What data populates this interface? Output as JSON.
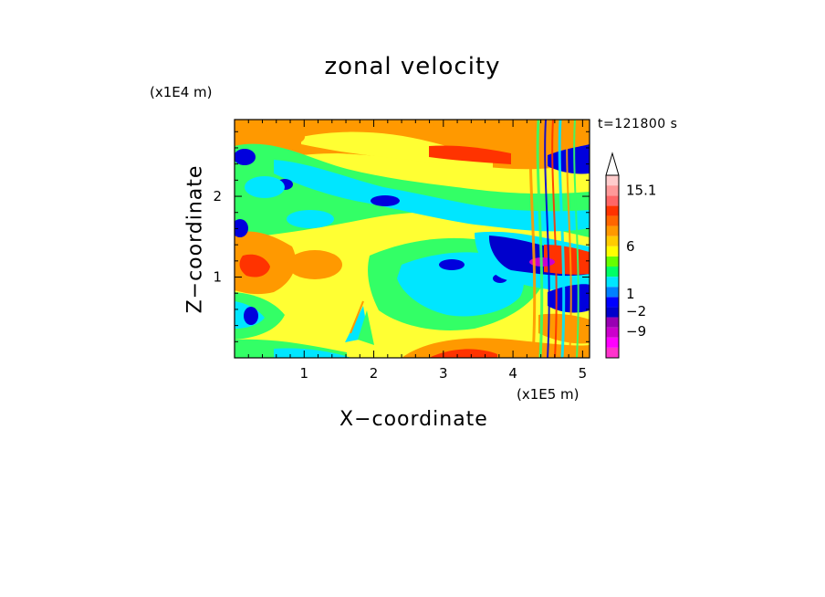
{
  "chart_data": {
    "type": "heatmap",
    "title": "zonal velocity",
    "xlabel": "X−coordinate",
    "ylabel": "Z−coordinate",
    "x_scale_label": "(x1E5 m)",
    "z_scale_label": "(x1E4 m)",
    "time_label": "t=121800 s",
    "xlim": [
      0,
      5.1
    ],
    "ylim": [
      0,
      2.95
    ],
    "x_ticks": [
      "1",
      "2",
      "3",
      "4",
      "5"
    ],
    "y_ticks": [
      "1",
      "2"
    ],
    "colorbar": {
      "levels": [
        {
          "color": "#ff33cc"
        },
        {
          "color": "#ff00ff"
        },
        {
          "color": "#cc00cc"
        },
        {
          "color": "#9900b3"
        },
        {
          "color": "#0000cc"
        },
        {
          "color": "#0000ff"
        },
        {
          "color": "#0080ff"
        },
        {
          "color": "#00e6ff"
        },
        {
          "color": "#00ff66"
        },
        {
          "color": "#66ff00"
        },
        {
          "color": "#ffff00"
        },
        {
          "color": "#ffcc00"
        },
        {
          "color": "#ff9900"
        },
        {
          "color": "#ff6600"
        },
        {
          "color": "#ff3300"
        },
        {
          "color": "#ff6666"
        },
        {
          "color": "#ff9999"
        },
        {
          "color": "#ffcccc"
        }
      ],
      "labels": [
        "15.1",
        "6",
        "1",
        "−2",
        "−9"
      ],
      "max_label": "15.1"
    },
    "regions": [
      {
        "name": "background",
        "color": "#ffff33"
      },
      {
        "name": "lower-left green",
        "color": "#33ff66"
      },
      {
        "name": "left blue eddies",
        "color": "#0000dd"
      },
      {
        "name": "upper orange band",
        "color": "#ff9900"
      },
      {
        "name": "central cyan",
        "color": "#00e6ff"
      },
      {
        "name": "right blue jet",
        "color": "#0000cc"
      },
      {
        "name": "right red core",
        "color": "#ff3300"
      },
      {
        "name": "magenta core",
        "color": "#cc00cc"
      }
    ]
  }
}
